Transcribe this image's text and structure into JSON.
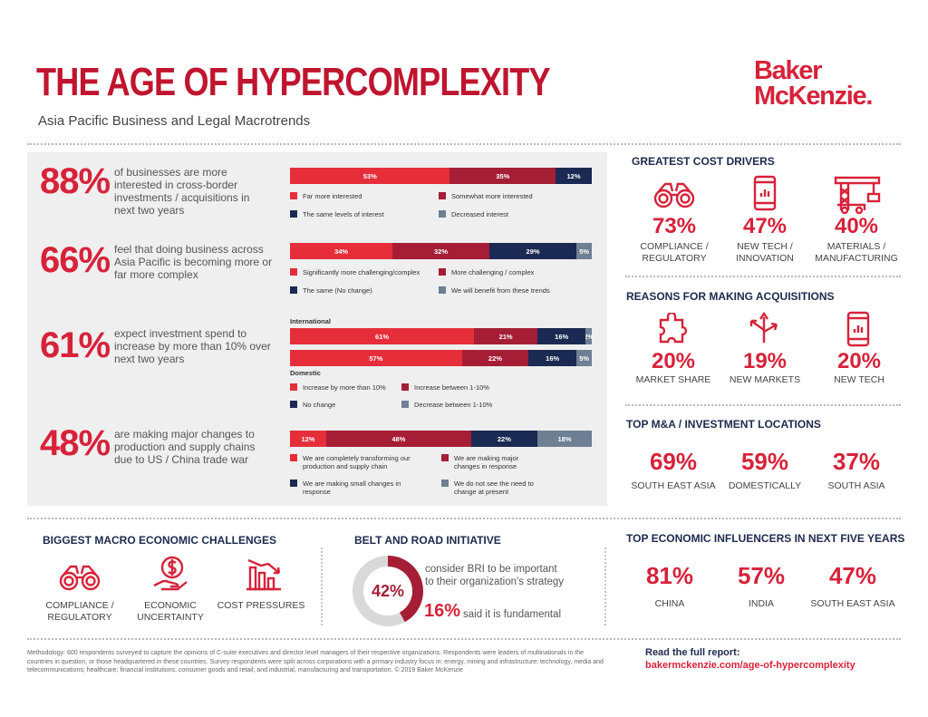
{
  "header": {
    "title": "THE AGE OF HYPERCOMPLEXITY",
    "subtitle": "Asia Pacific Business and Legal Macrotrends",
    "logo_line1": "Baker",
    "logo_line2": "McKenzie."
  },
  "colors": {
    "red": "#e62e3b",
    "maroon": "#a51e36",
    "navy": "#1b2a52",
    "gray": "#6f7f94",
    "accent": "#d7223a"
  },
  "stats": [
    {
      "pct": "88%",
      "text": "of businesses are more interested in cross-border investments / acquisitions in next two years"
    },
    {
      "pct": "66%",
      "text": "feel that doing business across Asia Pacific is becoming more or far more complex"
    },
    {
      "pct": "61%",
      "text": "expect investment spend to increase by more than 10% over next two years"
    },
    {
      "pct": "48%",
      "text": "are making major changes to production and supply chains due to US / China trade war"
    }
  ],
  "chart_data": [
    {
      "type": "bar",
      "orientation": "horizontal-stacked",
      "series": [
        {
          "name": "Far more interested",
          "values": [
            53
          ],
          "label": "53%"
        },
        {
          "name": "Somewhat more interested",
          "values": [
            35
          ],
          "label": "35%"
        },
        {
          "name": "The same levels of interest",
          "values": [
            12
          ],
          "label": "12%"
        },
        {
          "name": "Decreased interest",
          "values": [
            0
          ],
          "label": ""
        }
      ]
    },
    {
      "type": "bar",
      "orientation": "horizontal-stacked",
      "series": [
        {
          "name": "Significantly more challenging/complex",
          "values": [
            34
          ],
          "label": "34%"
        },
        {
          "name": "More challenging / complex",
          "values": [
            32
          ],
          "label": "32%"
        },
        {
          "name": "The same (No change)",
          "values": [
            29
          ],
          "label": "29%"
        },
        {
          "name": "We will benefit from these trends",
          "values": [
            5
          ],
          "label": "5%"
        }
      ]
    },
    {
      "type": "bar",
      "orientation": "horizontal-stacked",
      "categories": [
        "International",
        "Domestic"
      ],
      "series": [
        {
          "name": "Increase by more than 10%",
          "values": [
            61,
            57
          ],
          "labels": [
            "61%",
            "57%"
          ]
        },
        {
          "name": "Increase between 1-10%",
          "values": [
            21,
            22
          ],
          "labels": [
            "21%",
            "22%"
          ]
        },
        {
          "name": "No change",
          "values": [
            16,
            16
          ],
          "labels": [
            "16%",
            "16%"
          ]
        },
        {
          "name": "Decrease between 1-10%",
          "values": [
            2,
            5
          ],
          "labels": [
            "2%",
            "5%"
          ]
        }
      ]
    },
    {
      "type": "bar",
      "orientation": "horizontal-stacked",
      "series": [
        {
          "name": "We are completely transforming our production and supply chain",
          "values": [
            12
          ],
          "label": "12%"
        },
        {
          "name": "We are making major changes in response",
          "values": [
            48
          ],
          "label": "48%"
        },
        {
          "name": "We are making small changes in response",
          "values": [
            22
          ],
          "label": "22%"
        },
        {
          "name": "We do not see the need to change at present",
          "values": [
            18
          ],
          "label": "18%"
        }
      ]
    },
    {
      "type": "pie",
      "style": "donut",
      "values": [
        42,
        58
      ],
      "center_label": "42%"
    }
  ],
  "cost_drivers": {
    "heading": "GREATEST COST DRIVERS",
    "items": [
      {
        "icon": "binoculars-icon",
        "pct": "73%",
        "label1": "COMPLIANCE /",
        "label2": "REGULATORY"
      },
      {
        "icon": "smartphone-icon",
        "pct": "47%",
        "label1": "NEW TECH /",
        "label2": "INNOVATION"
      },
      {
        "icon": "crane-icon",
        "pct": "40%",
        "label1": "MATERIALS /",
        "label2": "MANUFACTURING"
      }
    ]
  },
  "acquisitions": {
    "heading": "REASONS FOR MAKING ACQUISITIONS",
    "items": [
      {
        "icon": "puzzle-icon",
        "pct": "20%",
        "label": "MARKET SHARE"
      },
      {
        "icon": "signpost-icon",
        "pct": "19%",
        "label": "NEW MARKETS"
      },
      {
        "icon": "smartphone-icon",
        "pct": "20%",
        "label": "NEW TECH"
      }
    ]
  },
  "locations": {
    "heading": "TOP M&A / INVESTMENT LOCATIONS",
    "items": [
      {
        "pct": "69%",
        "label": "SOUTH EAST ASIA"
      },
      {
        "pct": "59%",
        "label": "DOMESTICALLY"
      },
      {
        "pct": "37%",
        "label": "SOUTH ASIA"
      }
    ]
  },
  "challenges": {
    "heading": "BIGGEST MACRO ECONOMIC CHALLENGES",
    "items": [
      {
        "icon": "binoculars-icon",
        "label1": "COMPLIANCE /",
        "label2": "REGULATORY"
      },
      {
        "icon": "money-hand-icon",
        "label1": "ECONOMIC",
        "label2": "UNCERTAINTY"
      },
      {
        "icon": "declining-chart-icon",
        "label1": "COST PRESSURES",
        "label2": ""
      }
    ]
  },
  "bri": {
    "heading": "BELT AND ROAD INITIATIVE",
    "text1": "consider BRI to be important",
    "text2": "to their organization's strategy",
    "pct2": "16%",
    "text3": "said it is fundamental"
  },
  "influencers": {
    "heading": "TOP ECONOMIC INFLUENCERS IN NEXT FIVE YEARS",
    "items": [
      {
        "pct": "81%",
        "label": "CHINA"
      },
      {
        "pct": "57%",
        "label": "INDIA"
      },
      {
        "pct": "47%",
        "label": "SOUTH EAST ASIA"
      }
    ]
  },
  "footer": {
    "methodology": "Methodology: 600 respondents surveyed to capture the opinions of C-suite executives and director level managers of their respective organizations. Respondents were leaders of multinationals in the countries in question, or those headquartered in these countries. Survey respondents were split across corporations with a primary industry focus in: energy, mining and infrastructure; technology, media and telecommunications; healthcare; financial institutions; consumer goods and retail; and industrial, manufacturing and transportation. © 2019 Baker McKenzie",
    "read_label": "Read the full report:",
    "url": "bakermckenzie.com/age-of-hypercomplexity"
  }
}
